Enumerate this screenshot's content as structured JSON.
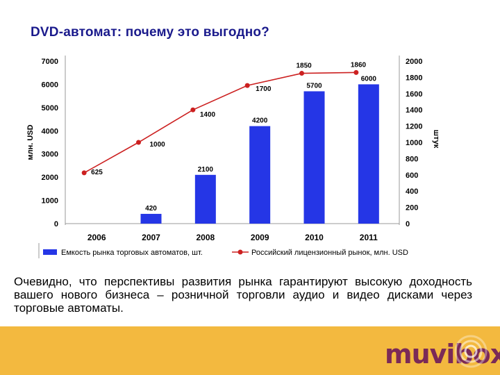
{
  "page": {
    "title": "DVD-автомат: почему это выгодно?",
    "paragraph": "Очевидно, что перспективы развития рынка гарантируют высокую доходность вашего нового бизнеса – розничной торговли аудио и видео дисками через торговые автоматы.",
    "logo": "muvibox"
  },
  "colors": {
    "bar": "#2536e6",
    "line": "#cc2020",
    "title": "#1a1a8c",
    "footer": "#f3b93f",
    "logo": "#7b2a57"
  },
  "chart_data": {
    "type": "bar",
    "categories": [
      "2006",
      "2007",
      "2008",
      "2009",
      "2010",
      "2011"
    ],
    "series": [
      {
        "name": "Емкость рынка торговых автоматов, шт.",
        "type": "bar",
        "axis": "left",
        "values": [
          null,
          420,
          2100,
          4200,
          5700,
          6000
        ],
        "labels": [
          "",
          "420",
          "2100",
          "4200",
          "5700",
          "6000"
        ]
      },
      {
        "name": "Российский лицензионный рынок, млн. USD",
        "type": "line",
        "axis": "right",
        "values": [
          625,
          1000,
          1400,
          1700,
          1850,
          1860
        ],
        "labels": [
          "625",
          "1000",
          "1400",
          "1700",
          "1850",
          "1860"
        ]
      }
    ],
    "left_axis": {
      "label": "млн. USD",
      "ticks": [
        "0",
        "1000",
        "2000",
        "3000",
        "4000",
        "5000",
        "6000",
        "7000"
      ],
      "range": [
        0,
        7000
      ]
    },
    "right_axis": {
      "label": "штук",
      "ticks": [
        "0",
        "200",
        "400",
        "600",
        "800",
        "1000",
        "1200",
        "1400",
        "1600",
        "1800",
        "2000"
      ],
      "range": [
        0,
        2000
      ]
    },
    "legend": "bottom",
    "grid": false
  }
}
